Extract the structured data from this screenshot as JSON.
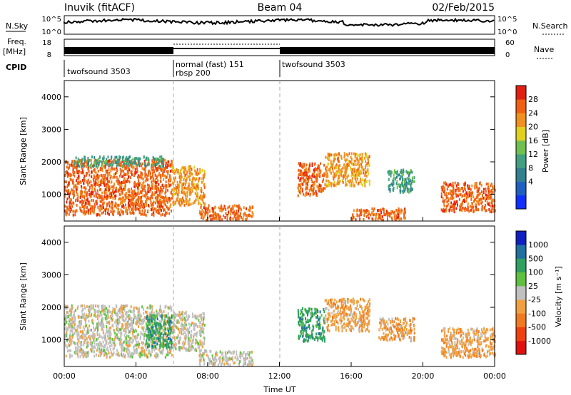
{
  "header": {
    "station": "Inuvik (fitACF)",
    "beam": "Beam 04",
    "date": "02/Feb/2015"
  },
  "noise_panel": {
    "left_label": "N.Sky",
    "right_label": "N.Search",
    "y_ticks": [
      "10^5",
      "10^0"
    ]
  },
  "freq_panel": {
    "left_label_top": "Freq.",
    "left_label_unit": "[MHz]",
    "left_ticks": [
      "18",
      "8"
    ],
    "right_label": "Nave",
    "right_ticks": [
      "60",
      "0"
    ]
  },
  "cpid_panel": {
    "label": "CPID",
    "segments": [
      {
        "start_hour": 0,
        "end_hour": 6,
        "lines": [
          "twofsound 3503"
        ]
      },
      {
        "start_hour": 6,
        "end_hour": 12,
        "lines": [
          "normal (fast) 151",
          "rbsp 200"
        ]
      },
      {
        "start_hour": 12,
        "end_hour": 24,
        "lines": [
          "twofsound 3503"
        ]
      }
    ]
  },
  "power_panel": {
    "ylabel": "Slant Range [km]",
    "colorbar_label": "Power [dB]",
    "colorbar_ticks": [
      "28",
      "24",
      "20",
      "16",
      "12",
      "8",
      "4"
    ]
  },
  "velocity_panel": {
    "ylabel": "Slant Range [km]",
    "colorbar_label": "Velocity [m s⁻¹]",
    "colorbar_ticks": [
      "1000",
      "500",
      "100",
      "25",
      "-25",
      "-100",
      "-500",
      "-1000"
    ]
  },
  "xaxis": {
    "label": "Time UT",
    "ticks": [
      "00:00",
      "04:00",
      "08:00",
      "12:00",
      "16:00",
      "20:00",
      "00:00"
    ]
  },
  "yaxis": {
    "ticks": [
      "1000",
      "2000",
      "3000",
      "4000"
    ]
  },
  "chart_data": [
    {
      "type": "heatmap",
      "title": "Beam 04",
      "xlabel": "Time UT",
      "ylabel": "Slant Range [km]",
      "xlim": [
        0,
        24
      ],
      "ylim": [
        180,
        4500
      ],
      "colorbar_label": "Power [dB]",
      "clim": [
        0,
        32
      ],
      "regions": [
        {
          "t0": 0.0,
          "t1": 6.0,
          "r0": 400,
          "r1": 2100,
          "value": 26
        },
        {
          "t0": 0.5,
          "t1": 5.5,
          "r0": 1900,
          "r1": 2200,
          "value": 14
        },
        {
          "t0": 6.0,
          "t1": 7.8,
          "r0": 700,
          "r1": 1900,
          "value": 24
        },
        {
          "t0": 7.5,
          "t1": 10.5,
          "r0": 250,
          "r1": 700,
          "value": 26
        },
        {
          "t0": 13.0,
          "t1": 14.5,
          "r0": 1000,
          "r1": 2000,
          "value": 26
        },
        {
          "t0": 14.5,
          "t1": 17.0,
          "r0": 1300,
          "r1": 2300,
          "value": 24
        },
        {
          "t0": 16.0,
          "t1": 19.0,
          "r0": 250,
          "r1": 600,
          "value": 26
        },
        {
          "t0": 18.0,
          "t1": 19.5,
          "r0": 1100,
          "r1": 1800,
          "value": 14
        },
        {
          "t0": 21.0,
          "t1": 24.0,
          "r0": 500,
          "r1": 1400,
          "value": 28
        }
      ]
    },
    {
      "type": "heatmap",
      "xlabel": "Time UT",
      "ylabel": "Slant Range [km]",
      "xlim": [
        0,
        24
      ],
      "ylim": [
        180,
        4500
      ],
      "colorbar_label": "Velocity [m s⁻¹]",
      "clim": [
        -1000,
        1000
      ],
      "regions": [
        {
          "t0": 0.0,
          "t1": 6.0,
          "r0": 500,
          "r1": 2100,
          "value": -100
        },
        {
          "t0": 4.5,
          "t1": 6.0,
          "r0": 800,
          "r1": 1800,
          "value": 500
        },
        {
          "t0": 6.0,
          "t1": 7.8,
          "r0": 700,
          "r1": 1900,
          "value": 100
        },
        {
          "t0": 7.5,
          "t1": 10.5,
          "r0": 250,
          "r1": 700,
          "value": 50
        },
        {
          "t0": 13.0,
          "t1": 14.5,
          "r0": 1000,
          "r1": 2000,
          "value": 500
        },
        {
          "t0": 14.5,
          "t1": 17.0,
          "r0": 1300,
          "r1": 2300,
          "value": -200
        },
        {
          "t0": 17.5,
          "t1": 19.5,
          "r0": 1000,
          "r1": 1700,
          "value": -150
        },
        {
          "t0": 21.0,
          "t1": 24.0,
          "r0": 500,
          "r1": 1400,
          "value": -200
        }
      ]
    }
  ],
  "colors": {
    "power_scale": [
      "#1030ff",
      "#2060c0",
      "#308090",
      "#40a080",
      "#70c050",
      "#e0d020",
      "#f09020",
      "#f06010",
      "#e02010"
    ],
    "velocity_scale": [
      "#e01010",
      "#f04010",
      "#f07a20",
      "#f0a040",
      "#c0c0c0",
      "#60c040",
      "#30a060",
      "#2070a0",
      "#1020c0"
    ]
  }
}
